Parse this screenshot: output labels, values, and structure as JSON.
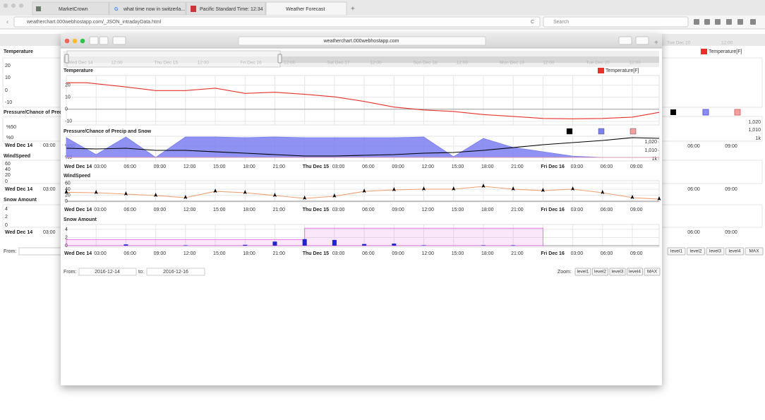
{
  "browser": {
    "tabs": [
      "MarketCrown",
      "what time now in switzerla...",
      "Pacific Standard Time: 12:34",
      "Weather Forecast"
    ],
    "url": "weatherchart.000webhostapp.com/_JSON_intradayData.html",
    "search_placeholder": "Search"
  },
  "background_page": {
    "left_titles": [
      "Temperature",
      "Pressure/Chance of Precip",
      "WindSpeed",
      "Snow Amount"
    ],
    "left_yticks": [
      [
        "20",
        "10",
        "0",
        "-10"
      ],
      [
        "%50",
        "%0"
      ],
      [
        "60",
        "40",
        "20",
        "0"
      ],
      [
        "4",
        "2",
        "0"
      ]
    ],
    "left_xlabels": [
      "Wed Dec 14",
      "03:00"
    ],
    "from_label": "From:",
    "right_nav_labels": [
      "Tue Dec 20",
      "12:00"
    ],
    "right_legend": "Temperature[F]",
    "right_pressure_ticks": [
      "1,020",
      "1,010",
      "1k"
    ],
    "right_xlabels": [
      "06:00",
      "09:00"
    ],
    "right_zoom_buttons": [
      "level1",
      "level2",
      "level3",
      "level4",
      "MAX"
    ]
  },
  "window": {
    "url": "weatherchart.000webhostapp.com",
    "navigator_labels": [
      "Wed Dec 14",
      "12:00",
      "Thu Dec 15",
      "12:00",
      "Fri Dec 16",
      "12:00",
      "Sat Dec 17",
      "12:00",
      "Sun Dec 18",
      "12:00",
      "Mon Dec 19",
      "12:00",
      "Tue Dec 20",
      "12:00"
    ],
    "time_axis": {
      "xlim": [
        0,
        59.7
      ],
      "xticks": [
        {
          "value": 0,
          "label": "Wed Dec 14"
        },
        {
          "value": 3,
          "label": "03:00"
        },
        {
          "value": 6,
          "label": "06:00"
        },
        {
          "value": 9,
          "label": "09:00"
        },
        {
          "value": 12,
          "label": "12:00"
        },
        {
          "value": 15,
          "label": "15:00"
        },
        {
          "value": 18,
          "label": "18:00"
        },
        {
          "value": 21,
          "label": "21:00"
        },
        {
          "value": 24,
          "label": "Thu Dec 15"
        },
        {
          "value": 27,
          "label": "03:00"
        },
        {
          "value": 30,
          "label": "06:00"
        },
        {
          "value": 33,
          "label": "09:00"
        },
        {
          "value": 36,
          "label": "12:00"
        },
        {
          "value": 39,
          "label": "15:00"
        },
        {
          "value": 42,
          "label": "18:00"
        },
        {
          "value": 45,
          "label": "21:00"
        },
        {
          "value": 48,
          "label": "Fri Dec 16"
        },
        {
          "value": 51,
          "label": "03:00"
        },
        {
          "value": 54,
          "label": "06:00"
        },
        {
          "value": 57,
          "label": "09:00"
        }
      ]
    },
    "charts": [
      {
        "type": "line",
        "title": "Temperature",
        "ylim": [
          -13,
          28
        ],
        "yticks": [
          20,
          10,
          0,
          -10
        ],
        "grid": true,
        "series": [
          {
            "name": "Temperature[F]",
            "color": "#e8312a",
            "x": [
              0,
              2,
              6,
              9,
              12,
              15,
              18,
              21,
              24,
              27,
              30,
              33,
              36,
              39,
              42,
              45,
              48,
              51,
              54,
              57,
              59.7
            ],
            "values": [
              22,
              22,
              18.5,
              15.5,
              15.5,
              17.5,
              13.2,
              14.1,
              12.4,
              10.3,
              6.5,
              1.8,
              -0.6,
              -1.8,
              -4.4,
              -5.9,
              -7.6,
              -7.9,
              -7.6,
              -6.5,
              -2.6
            ]
          }
        ]
      },
      {
        "type": "combo",
        "title": "Pressure/Chance of Precip and Snow",
        "grid": true,
        "ylim": [
          -15.6,
          93.75
        ],
        "yticks": [
          {
            "value": 50,
            "label": "%50"
          },
          {
            "value": 0,
            "label": "%0"
          }
        ],
        "y2lim": [
          997.5,
          1026.7
        ],
        "y2ticks": [
          {
            "value": 1020,
            "label": "1,020"
          },
          {
            "value": 1010,
            "label": "1,010"
          },
          {
            "value": 1000,
            "label": "1k"
          }
        ],
        "series": [
          {
            "type": "line",
            "axis": "y2",
            "color": "#000000",
            "x": [
              0,
              3,
              6,
              9,
              12,
              15,
              18,
              21,
              24,
              27,
              30,
              33,
              36,
              39,
              42,
              45,
              48,
              51,
              54,
              57,
              59.7
            ],
            "values": [
              1012.5,
              1011.7,
              1012.5,
              1010,
              1010,
              1008.3,
              1006.7,
              1005,
              1003.3,
              1003.3,
              1004.2,
              1005,
              1006.7,
              1007.5,
              1010,
              1013.3,
              1016.7,
              1019.2,
              1021.7,
              1025,
              1024.2
            ]
          },
          {
            "type": "area",
            "color": "#7b7ff0",
            "x": [
              0,
              3,
              6,
              9,
              12,
              15,
              18,
              21,
              24,
              27,
              30,
              33,
              36,
              39,
              42,
              45,
              48,
              51,
              54,
              57,
              59.7
            ],
            "values": [
              87.5,
              12.5,
              90.6,
              0,
              90.6,
              90.6,
              87.5,
              90.6,
              87.5,
              87.5,
              87.5,
              87.5,
              90.6,
              3,
              84,
              44,
              25,
              6,
              0,
              0,
              0
            ]
          },
          {
            "type": "area",
            "color": "#f4a0a0",
            "x": [
              0,
              3,
              6,
              9,
              12,
              15,
              18,
              21,
              24,
              27,
              30,
              33,
              36,
              39,
              42,
              45,
              48,
              51,
              54,
              57,
              59.7
            ],
            "values": [
              0,
              0,
              0,
              0,
              0,
              0,
              0,
              0,
              0,
              0,
              0,
              0,
              0,
              0,
              0,
              0,
              0,
              0,
              0,
              0,
              0
            ]
          }
        ]
      },
      {
        "type": "line",
        "title": "WindSpeed",
        "ylim": [
          -2.4,
          69
        ],
        "yticks": [
          60,
          40,
          20,
          0
        ],
        "grid": true,
        "series": [
          {
            "color": "#f0a070",
            "marker": "arrow",
            "marker_color": "#000000",
            "x": [
              0,
              3,
              6,
              9,
              12,
              15,
              18,
              21,
              24,
              27,
              30,
              33,
              36,
              39,
              42,
              45,
              48,
              51,
              54,
              57,
              59.7
            ],
            "values": [
              30,
              28.6,
              23.8,
              19,
              11.9,
              33,
              28.6,
              19,
              9.5,
              16.7,
              33,
              38,
              40.5,
              40.5,
              50,
              40.5,
              35.7,
              40.5,
              28.6,
              11.9,
              7
            ]
          }
        ]
      },
      {
        "type": "bar",
        "title": "Snow Amount",
        "ylim": [
          -0.35,
          5.2
        ],
        "yticks": [
          4,
          2,
          0
        ],
        "grid": true,
        "series": [
          {
            "color": "#e060e0",
            "bins": [
              0,
              24,
              48
            ],
            "values": [
              1.5,
              4.3
            ]
          },
          {
            "color": "#2424cc",
            "x": [
              6,
              12,
              18,
              21,
              24,
              27,
              30,
              33,
              36,
              42,
              45
            ],
            "values": [
              0.3,
              0.1,
              0.2,
              1.0,
              1.6,
              1.4,
              0.4,
              0.5,
              0.1,
              0.1,
              0.1
            ]
          }
        ]
      }
    ],
    "range": {
      "from_label": "From:",
      "from": "2016-12-14",
      "to_label": "to:",
      "to": "2016-12-16"
    },
    "zoom": {
      "label": "Zoom:",
      "buttons": [
        "level1",
        "level2",
        "level3",
        "level4",
        "MAX"
      ]
    }
  }
}
